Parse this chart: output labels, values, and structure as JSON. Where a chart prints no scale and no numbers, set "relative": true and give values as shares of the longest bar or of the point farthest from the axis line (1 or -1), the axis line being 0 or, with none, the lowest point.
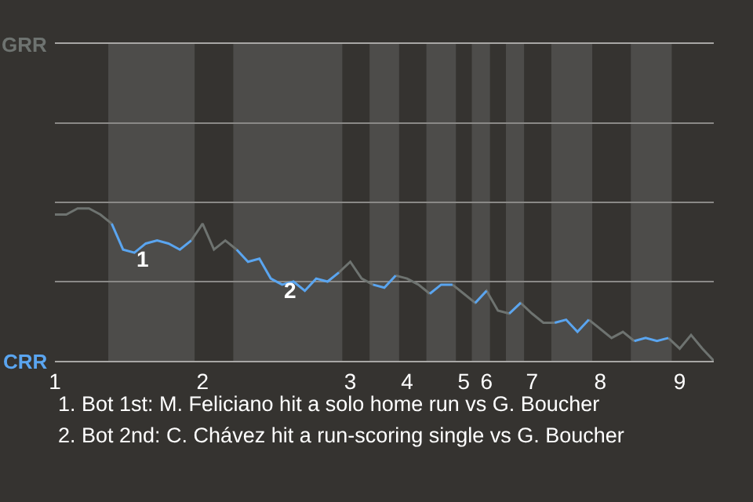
{
  "chart_data": {
    "type": "line",
    "relative": true,
    "categories": [
      "1",
      null,
      null,
      null,
      null,
      null,
      null,
      null,
      null,
      null,
      null,
      null,
      null,
      "2",
      null,
      null,
      null,
      null,
      null,
      null,
      null,
      null,
      null,
      null,
      null,
      null,
      "3",
      null,
      null,
      null,
      null,
      "4",
      null,
      null,
      null,
      null,
      "5",
      null,
      "6",
      null,
      null,
      null,
      "7",
      null,
      null,
      null,
      null,
      null,
      "8",
      null,
      null,
      null,
      null,
      null,
      null,
      "9",
      null,
      null,
      null
    ],
    "series": [
      {
        "color": "#6e7370",
        "values": [
          0.96,
          0.96,
          1,
          1,
          0.96,
          0.9,
          null,
          null,
          null,
          null,
          null,
          null,
          0.79,
          0.9,
          0.73,
          0.79,
          0.73,
          null,
          null,
          null,
          null,
          null,
          null,
          null,
          null,
          0.58,
          0.65,
          0.54,
          0.5,
          null,
          0.56,
          0.54,
          0.5,
          0.44,
          null,
          0.5,
          0.44,
          0.38,
          0.46,
          0.33,
          0.31,
          0.38,
          0.31,
          0.25,
          0.25,
          null,
          null,
          0.27,
          0.21,
          0.15,
          0.19,
          0.13,
          null,
          null,
          0.15,
          0.08,
          0.17,
          0.08,
          0
        ]
      },
      {
        "color": "#5aa5f0",
        "values": [
          null,
          null,
          null,
          null,
          null,
          0.9,
          0.73,
          0.71,
          0.77,
          0.79,
          0.77,
          0.73,
          0.79,
          null,
          null,
          null,
          0.73,
          0.65,
          0.67,
          0.54,
          0.5,
          0.52,
          0.46,
          0.54,
          0.52,
          0.58,
          null,
          null,
          0.5,
          0.48,
          0.56,
          null,
          null,
          0.44,
          0.5,
          0.5,
          null,
          0.38,
          0.46,
          null,
          0.31,
          0.38,
          null,
          null,
          0.25,
          0.27,
          0.19,
          0.27,
          null,
          null,
          null,
          0.13,
          0.15,
          0.13,
          0.15,
          null,
          null,
          null,
          null
        ]
      }
    ],
    "ref_lines": [
      {
        "axis": "y",
        "value": 0.52,
        "color": "#8a8987"
      },
      {
        "axis": "y",
        "value": 1.04,
        "color": "#8a8987"
      },
      {
        "axis": "y",
        "value": 1.56,
        "color": "#8a8987"
      }
    ],
    "annotations": [
      "GRR",
      "CRR",
      {
        "text": "1",
        "y": 0.71
      },
      {
        "text": "2",
        "y": 0.5
      },
      "1. Bot 1st: M. Feliciano hit a solo home run vs G. Boucher",
      "2. Bot 2nd: C. Chávez hit a run-scoring single vs G. Boucher"
    ]
  }
}
